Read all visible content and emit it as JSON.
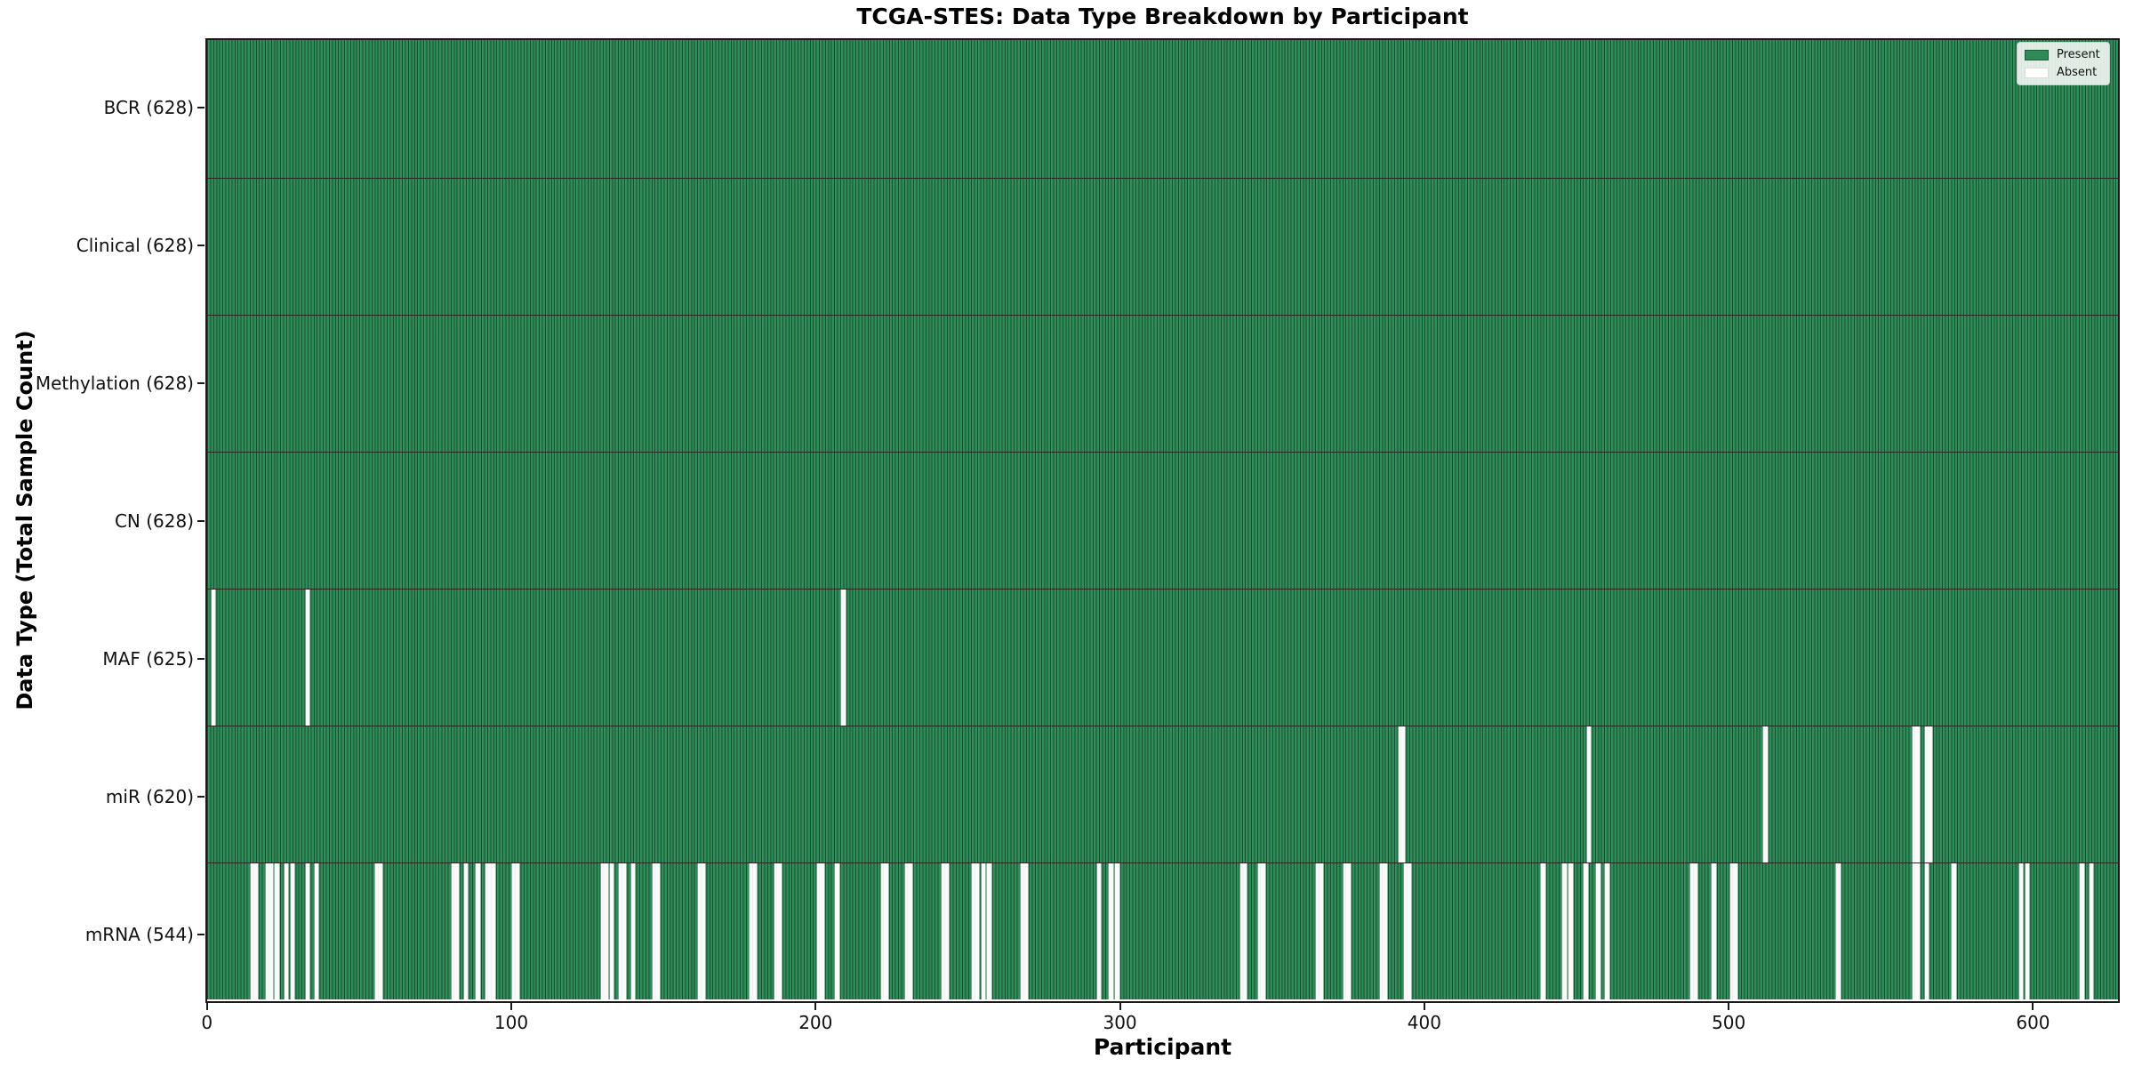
{
  "title": "TCGA-STES: Data Type Breakdown by Participant",
  "axes": {
    "xlabel": "Participant",
    "ylabel": "Data Type (Total Sample Count)"
  },
  "legend": {
    "position": "upper right",
    "present_label": "Present",
    "absent_label": "Absent"
  },
  "colors": {
    "present": "#2E8B57",
    "present_edge": "#1D5C38",
    "absent": "#FFFFFF"
  },
  "chart_data": {
    "type": "heatmap",
    "title": "TCGA-STES: Data Type Breakdown by Participant",
    "xlabel": "Participant",
    "ylabel": "Data Type (Total Sample Count)",
    "legend": [
      "Present",
      "Absent"
    ],
    "legend_position": "upper right",
    "grid": false,
    "n_participants": 628,
    "x_domain": [
      -0.5,
      628.5
    ],
    "x_ticks": [
      0,
      100,
      200,
      300,
      400,
      500,
      600
    ],
    "rows": [
      {
        "label": "BCR (628)",
        "data_type": "BCR",
        "present_count": 628,
        "absent_participants": []
      },
      {
        "label": "Clinical (628)",
        "data_type": "Clinical",
        "present_count": 628,
        "absent_participants": []
      },
      {
        "label": "Methylation (628)",
        "data_type": "Methylation",
        "present_count": 628,
        "absent_participants": []
      },
      {
        "label": "CN (628)",
        "data_type": "CN",
        "present_count": 628,
        "absent_participants": []
      },
      {
        "label": "MAF (625)",
        "data_type": "MAF",
        "present_count": 625,
        "absent_participants": [
          1,
          32,
          208
        ]
      },
      {
        "label": "miR (620)",
        "data_type": "miR",
        "present_count": 620,
        "absent_participants": [
          391,
          392,
          453,
          511,
          560,
          561,
          564,
          565
        ]
      },
      {
        "label": "mRNA (544)",
        "data_type": "mRNA",
        "present_count": 544,
        "absent_participants": [
          14,
          15,
          19,
          20,
          22,
          25,
          27,
          32,
          35,
          55,
          56,
          80,
          81,
          84,
          88,
          91,
          92,
          93,
          100,
          101,
          129,
          130,
          132,
          135,
          136,
          139,
          146,
          147,
          161,
          162,
          178,
          179,
          186,
          187,
          200,
          201,
          206,
          221,
          222,
          229,
          230,
          241,
          242,
          251,
          252,
          254,
          256,
          267,
          268,
          292,
          296,
          298,
          339,
          340,
          345,
          346,
          364,
          365,
          373,
          374,
          385,
          386,
          393,
          394,
          438,
          445,
          447,
          452,
          456,
          459,
          487,
          488,
          494,
          500,
          501,
          535,
          560,
          561,
          564,
          573,
          595,
          597,
          615,
          618
        ]
      }
    ]
  }
}
